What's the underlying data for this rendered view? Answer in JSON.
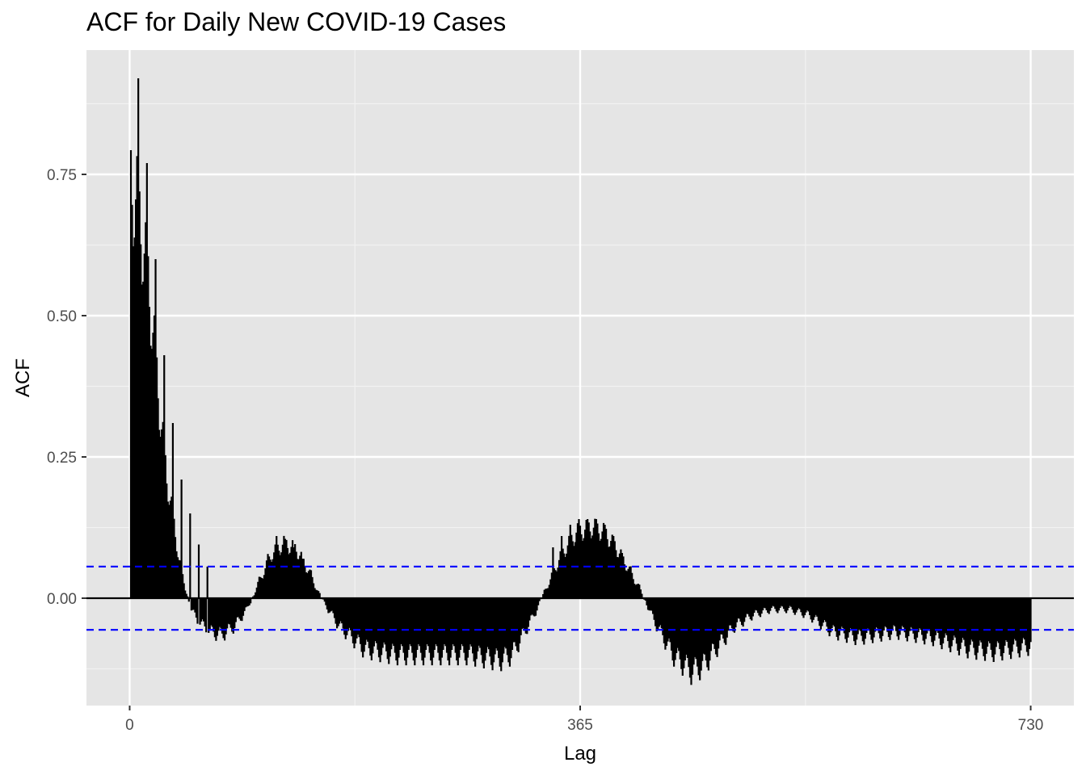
{
  "chart_data": {
    "type": "bar",
    "subtype": "acf",
    "title": "ACF for Daily New COVID-19 Cases",
    "xlabel": "Lag",
    "ylabel": "ACF",
    "xlim": [
      -35,
      765
    ],
    "ylim": [
      -0.19,
      0.97
    ],
    "x_ticks": [
      {
        "value": 0,
        "label": "0"
      },
      {
        "value": 365,
        "label": "365"
      },
      {
        "value": 730,
        "label": "730"
      }
    ],
    "y_ticks": [
      {
        "value": 0.0,
        "label": "0.00"
      },
      {
        "value": 0.25,
        "label": "0.25"
      },
      {
        "value": 0.5,
        "label": "0.50"
      },
      {
        "value": 0.75,
        "label": "0.75"
      }
    ],
    "confidence_bounds": [
      0.056,
      -0.056
    ],
    "confidence_color": "#0000ff",
    "bar_color": "#000000",
    "panel_background": "#e5e5e5",
    "grid": true,
    "lag_step": 1,
    "lag_max": 730,
    "envelope": [
      [
        1,
        0.76
      ],
      [
        3,
        0.74
      ],
      [
        6,
        0.72
      ],
      [
        10,
        0.66
      ],
      [
        15,
        0.58
      ],
      [
        20,
        0.46
      ],
      [
        25,
        0.33
      ],
      [
        30,
        0.22
      ],
      [
        35,
        0.15
      ],
      [
        40,
        0.07
      ],
      [
        45,
        0.02
      ],
      [
        50,
        -0.02
      ],
      [
        55,
        -0.04
      ],
      [
        65,
        -0.06
      ],
      [
        75,
        -0.065
      ],
      [
        85,
        -0.05
      ],
      [
        95,
        -0.02
      ],
      [
        105,
        0.03
      ],
      [
        115,
        0.08
      ],
      [
        125,
        0.1
      ],
      [
        135,
        0.09
      ],
      [
        145,
        0.05
      ],
      [
        155,
        0.0
      ],
      [
        170,
        -0.05
      ],
      [
        190,
        -0.09
      ],
      [
        215,
        -0.1
      ],
      [
        245,
        -0.1
      ],
      [
        275,
        -0.1
      ],
      [
        300,
        -0.11
      ],
      [
        310,
        -0.1
      ],
      [
        320,
        -0.06
      ],
      [
        330,
        -0.02
      ],
      [
        340,
        0.03
      ],
      [
        350,
        0.08
      ],
      [
        362,
        0.12
      ],
      [
        375,
        0.13
      ],
      [
        385,
        0.12
      ],
      [
        395,
        0.09
      ],
      [
        405,
        0.05
      ],
      [
        415,
        0.01
      ],
      [
        425,
        -0.04
      ],
      [
        440,
        -0.1
      ],
      [
        455,
        -0.13
      ],
      [
        465,
        -0.12
      ],
      [
        475,
        -0.09
      ],
      [
        490,
        -0.05
      ],
      [
        505,
        -0.03
      ],
      [
        520,
        -0.02
      ],
      [
        535,
        -0.02
      ],
      [
        550,
        -0.03
      ],
      [
        570,
        -0.06
      ],
      [
        590,
        -0.07
      ],
      [
        620,
        -0.06
      ],
      [
        650,
        -0.07
      ],
      [
        680,
        -0.09
      ],
      [
        700,
        -0.095
      ],
      [
        730,
        -0.085
      ]
    ],
    "weekly_spikes": [
      [
        7,
        0.92
      ],
      [
        14,
        0.77
      ],
      [
        21,
        0.6
      ],
      [
        28,
        0.43
      ],
      [
        35,
        0.31
      ],
      [
        42,
        0.21
      ],
      [
        49,
        0.15
      ],
      [
        56,
        0.095
      ],
      [
        63,
        0.056
      ],
      [
        119,
        0.11
      ],
      [
        126,
        0.105
      ],
      [
        133,
        0.09
      ],
      [
        140,
        0.07
      ],
      [
        343,
        0.09
      ],
      [
        350,
        0.11
      ],
      [
        357,
        0.13
      ],
      [
        364,
        0.14
      ],
      [
        371,
        0.14
      ],
      [
        378,
        0.14
      ],
      [
        385,
        0.13
      ],
      [
        392,
        0.11
      ],
      [
        399,
        0.08
      ]
    ]
  }
}
